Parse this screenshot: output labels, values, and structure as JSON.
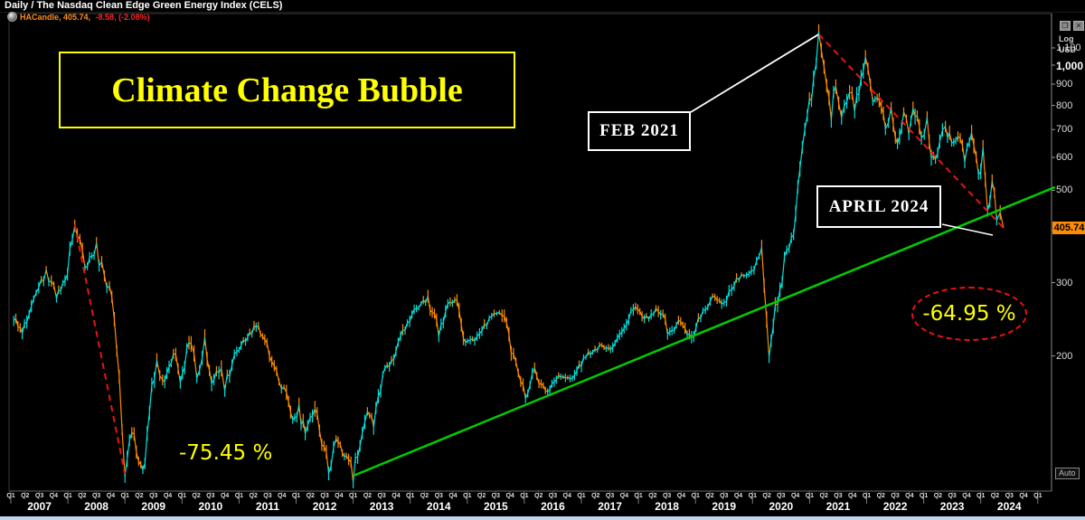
{
  "window": {
    "title": "Daily / The Nasdaq Clean Edge Green Energy Index (CELS)",
    "icons": {
      "restore": "❐",
      "close": "✕"
    }
  },
  "legend": {
    "left": "HACandle, 405.74, ",
    "right": "-8.58, (-2.08%)"
  },
  "y_axis": {
    "scale_type": "Log",
    "currency": "USD",
    "ticks": [
      {
        "label": "1,100",
        "value": 1100,
        "major": false
      },
      {
        "label": "1,000",
        "value": 1000,
        "major": true
      },
      {
        "label": "900",
        "value": 900,
        "major": false
      },
      {
        "label": "800",
        "value": 800,
        "major": false
      },
      {
        "label": "700",
        "value": 700,
        "major": false
      },
      {
        "label": "600",
        "value": 600,
        "major": false
      },
      {
        "label": "500",
        "value": 500,
        "major": false
      },
      {
        "label": "400",
        "value": 400,
        "major": false
      },
      {
        "label": "300",
        "value": 300,
        "major": false
      },
      {
        "label": "200",
        "value": 200,
        "major": false
      }
    ],
    "price_tag": "405.74",
    "auto_label": "Auto"
  },
  "x_axis": {
    "years": [
      "2007",
      "2008",
      "2009",
      "2010",
      "2011",
      "2012",
      "2013",
      "2014",
      "2015",
      "2016",
      "2017",
      "2018",
      "2019",
      "2020",
      "2021",
      "2022",
      "2023",
      "2024"
    ],
    "quarters": [
      "Q1",
      "Q2",
      "Q3",
      "Q4"
    ]
  },
  "annotations": {
    "headline": "Climate Change Bubble",
    "peak_label": "FEB 2021",
    "end_label": "APRIL 2024",
    "decline_2008": "-75.45 %",
    "decline_2021": "-64.95 %"
  },
  "chart_data": {
    "type": "line",
    "title": "Daily / The Nasdaq Clean Edge Green Energy Index (CELS)",
    "ylabel": "USD (log scale)",
    "x_range": [
      2007,
      2025.4
    ],
    "y_ticks": [
      1100,
      1000,
      900,
      800,
      700,
      600,
      500,
      400,
      300,
      200
    ],
    "y_scale": "log",
    "grid": false,
    "legend_position": "top-left",
    "colors": {
      "up": "#00e0dc",
      "down": "#ff8c00",
      "trend": "#00cc00",
      "decline": "#ee1111",
      "pointer": "#ffffff"
    },
    "series": [
      {
        "name": "HACandle",
        "points": [
          [
            2007.05,
            246
          ],
          [
            2007.2,
            231
          ],
          [
            2007.4,
            280
          ],
          [
            2007.62,
            316
          ],
          [
            2007.8,
            280
          ],
          [
            2007.95,
            300
          ],
          [
            2008.12,
            414
          ],
          [
            2008.3,
            323
          ],
          [
            2008.5,
            361
          ],
          [
            2008.64,
            308
          ],
          [
            2008.77,
            279
          ],
          [
            2008.9,
            178
          ],
          [
            2009.0,
            104
          ],
          [
            2009.12,
            132
          ],
          [
            2009.24,
            110
          ],
          [
            2009.35,
            107
          ],
          [
            2009.47,
            169
          ],
          [
            2009.56,
            196
          ],
          [
            2009.66,
            171
          ],
          [
            2009.85,
            205
          ],
          [
            2009.97,
            178
          ],
          [
            2010.16,
            218
          ],
          [
            2010.26,
            180
          ],
          [
            2010.4,
            218
          ],
          [
            2010.56,
            169
          ],
          [
            2010.69,
            195
          ],
          [
            2010.75,
            167
          ],
          [
            2010.96,
            207
          ],
          [
            2011.15,
            222
          ],
          [
            2011.3,
            237
          ],
          [
            2011.49,
            212
          ],
          [
            2011.7,
            171
          ],
          [
            2011.83,
            164
          ],
          [
            2011.94,
            139
          ],
          [
            2012.05,
            147
          ],
          [
            2012.16,
            129
          ],
          [
            2012.33,
            154
          ],
          [
            2012.57,
            107
          ],
          [
            2012.7,
            125
          ],
          [
            2012.81,
            117
          ],
          [
            2012.92,
            113
          ],
          [
            2013.0,
            103
          ],
          [
            2013.16,
            128
          ],
          [
            2013.25,
            146
          ],
          [
            2013.36,
            137
          ],
          [
            2013.52,
            180
          ],
          [
            2013.71,
            197
          ],
          [
            2013.91,
            233
          ],
          [
            2014.07,
            257
          ],
          [
            2014.31,
            275
          ],
          [
            2014.5,
            226
          ],
          [
            2014.66,
            266
          ],
          [
            2014.82,
            275
          ],
          [
            2014.97,
            217
          ],
          [
            2015.13,
            219
          ],
          [
            2015.47,
            254
          ],
          [
            2015.61,
            257
          ],
          [
            2015.81,
            197
          ],
          [
            2016.02,
            161
          ],
          [
            2016.18,
            183
          ],
          [
            2016.37,
            163
          ],
          [
            2016.6,
            178
          ],
          [
            2016.84,
            177
          ],
          [
            2017.08,
            200
          ],
          [
            2017.32,
            211
          ],
          [
            2017.55,
            206
          ],
          [
            2017.79,
            240
          ],
          [
            2017.95,
            264
          ],
          [
            2018.14,
            246
          ],
          [
            2018.35,
            262
          ],
          [
            2018.55,
            225
          ],
          [
            2018.74,
            245
          ],
          [
            2018.93,
            217
          ],
          [
            2019.09,
            250
          ],
          [
            2019.3,
            277
          ],
          [
            2019.5,
            264
          ],
          [
            2019.72,
            306
          ],
          [
            2019.98,
            321
          ],
          [
            2020.16,
            347
          ],
          [
            2020.29,
            204
          ],
          [
            2020.4,
            256
          ],
          [
            2020.56,
            339
          ],
          [
            2020.72,
            406
          ],
          [
            2020.83,
            548
          ],
          [
            2020.96,
            742
          ],
          [
            2021.07,
            925
          ],
          [
            2021.16,
            1186
          ],
          [
            2021.3,
            874
          ],
          [
            2021.38,
            773
          ],
          [
            2021.46,
            899
          ],
          [
            2021.56,
            752
          ],
          [
            2021.7,
            888
          ],
          [
            2021.79,
            790
          ],
          [
            2021.98,
            1082
          ],
          [
            2022.11,
            828
          ],
          [
            2022.22,
            857
          ],
          [
            2022.33,
            691
          ],
          [
            2022.43,
            777
          ],
          [
            2022.54,
            638
          ],
          [
            2022.65,
            752
          ],
          [
            2022.74,
            691
          ],
          [
            2022.85,
            790
          ],
          [
            2022.96,
            647
          ],
          [
            2023.06,
            726
          ],
          [
            2023.17,
            586
          ],
          [
            2023.28,
            647
          ],
          [
            2023.38,
            726
          ],
          [
            2023.49,
            638
          ],
          [
            2023.6,
            691
          ],
          [
            2023.72,
            601
          ],
          [
            2023.84,
            663
          ],
          [
            2023.96,
            548
          ],
          [
            2024.04,
            616
          ],
          [
            2024.12,
            459
          ],
          [
            2024.2,
            507
          ],
          [
            2024.28,
            436
          ],
          [
            2024.34,
            459
          ],
          [
            2024.4,
            406
          ]
        ]
      }
    ],
    "trendline": {
      "from": [
        2013.0,
        103
      ],
      "to": [
        2025.3,
        509
      ]
    },
    "declines": [
      {
        "label": "-75.45 %",
        "from": [
          2008.12,
          414
        ],
        "to": [
          2009.0,
          104
        ]
      },
      {
        "label": "-64.95 %",
        "from": [
          2021.16,
          1186
        ],
        "to": [
          2024.4,
          406
        ]
      }
    ],
    "annotation_anchors": [
      {
        "label": "FEB 2021",
        "t": 2021.16,
        "price": 1186
      },
      {
        "label": "APRIL 2024",
        "t": 2024.4,
        "price": 406
      }
    ]
  }
}
